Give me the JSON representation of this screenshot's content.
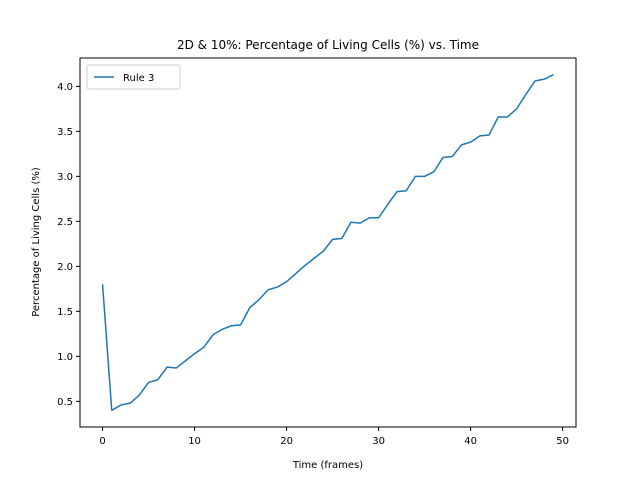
{
  "chart_data": {
    "type": "line",
    "title": "2D & 10%: Percentage of Living Cells (%) vs. Time",
    "xlabel": "Time (frames)",
    "ylabel": "Percentage of Living Cells (%)",
    "xlim": [
      -2.45,
      51.45
    ],
    "ylim": [
      0.215,
      4.315
    ],
    "xticks": [
      0,
      10,
      20,
      30,
      40,
      50
    ],
    "yticks": [
      0.5,
      1.0,
      1.5,
      2.0,
      2.5,
      3.0,
      3.5,
      4.0
    ],
    "ytick_labels": [
      "0.5",
      "1.0",
      "1.5",
      "2.0",
      "2.5",
      "3.0",
      "3.5",
      "4.0"
    ],
    "grid": false,
    "legend_position": "upper-left",
    "series": [
      {
        "name": "Rule 3",
        "color": "#1f77b4",
        "x": [
          0,
          1,
          2,
          3,
          4,
          5,
          6,
          7,
          8,
          9,
          10,
          11,
          12,
          13,
          14,
          15,
          16,
          17,
          18,
          19,
          20,
          21,
          22,
          23,
          24,
          25,
          26,
          27,
          28,
          29,
          30,
          31,
          32,
          33,
          34,
          35,
          36,
          37,
          38,
          39,
          40,
          41,
          42,
          43,
          44,
          45,
          46,
          47,
          48,
          49
        ],
        "y": [
          1.8,
          0.4,
          0.46,
          0.48,
          0.57,
          0.71,
          0.74,
          0.88,
          0.87,
          0.95,
          1.03,
          1.1,
          1.24,
          1.3,
          1.34,
          1.35,
          1.54,
          1.63,
          1.74,
          1.77,
          1.83,
          1.92,
          2.01,
          2.09,
          2.17,
          2.3,
          2.31,
          2.49,
          2.48,
          2.54,
          2.54,
          2.69,
          2.83,
          2.84,
          3.0,
          3.0,
          3.05,
          3.21,
          3.22,
          3.35,
          3.38,
          3.45,
          3.46,
          3.66,
          3.66,
          3.75,
          3.91,
          4.06,
          4.08,
          4.13
        ]
      }
    ]
  }
}
